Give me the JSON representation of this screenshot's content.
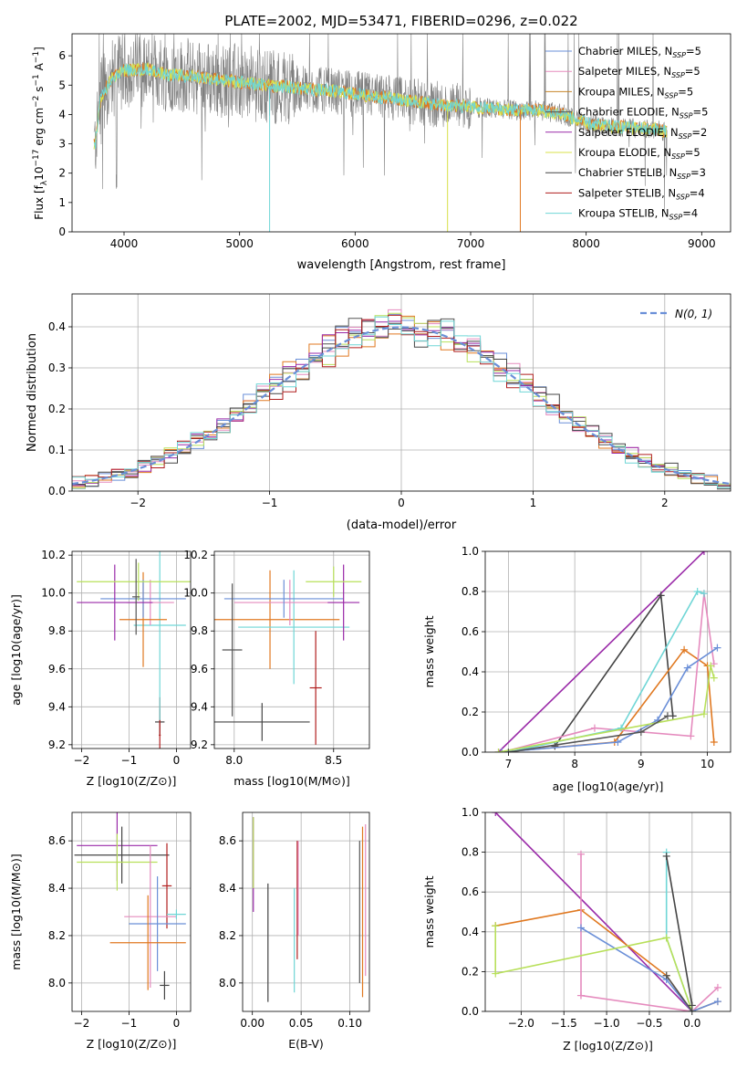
{
  "title": "PLATE=2002, MJD=53471, FIBERID=0296, z=0.022",
  "colors": {
    "Chabrier MILES": "#6a8fd8",
    "Salpeter MILES": "#e58bbe",
    "Kroupa MILES": "#c8862a",
    "Chabrier ELODIE": "#555555",
    "Salpeter ELODIE": "#9a2aa8",
    "Kroupa ELODIE": "#d8e04a",
    "Chabrier STELIB": "#444444",
    "Salpeter STELIB": "#b01e1e",
    "Kroupa STELIB": "#6fd6d6",
    "orange": "#e07820",
    "lime": "#b8e05a",
    "gray": "#808080",
    "normal": "#6a8fd8"
  },
  "legend": [
    {
      "label": "Chabrier MILES, N",
      "sub": "SSP",
      "suffix": "=5",
      "color": "#6a8fd8"
    },
    {
      "label": "Salpeter MILES, N",
      "sub": "SSP",
      "suffix": "=5",
      "color": "#e58bbe"
    },
    {
      "label": "Kroupa MILES, N",
      "sub": "SSP",
      "suffix": "=5",
      "color": "#c8862a"
    },
    {
      "label": "Chabrier ELODIE, N",
      "sub": "SSP",
      "suffix": "=5",
      "color": "#555555"
    },
    {
      "label": "Salpeter ELODIE, N",
      "sub": "SSP",
      "suffix": "=2",
      "color": "#9a2aa8"
    },
    {
      "label": "Kroupa ELODIE, N",
      "sub": "SSP",
      "suffix": "=5",
      "color": "#d8e04a"
    },
    {
      "label": "Chabrier STELIB, N",
      "sub": "SSP",
      "suffix": "=3",
      "color": "#444444"
    },
    {
      "label": "Salpeter STELIB, N",
      "sub": "SSP",
      "suffix": "=4",
      "color": "#b01e1e"
    },
    {
      "label": "Kroupa STELIB, N",
      "sub": "SSP",
      "suffix": "=4",
      "color": "#6fd6d6"
    }
  ],
  "chart_data": [
    {
      "id": "spectrum",
      "type": "line",
      "xlabel": "wavelength [Angstrom, rest frame]",
      "ylabel_parts": [
        "Flux [f",
        "λ",
        "10",
        "−17",
        " erg cm",
        "−2",
        " s",
        "−1",
        " A",
        "−1",
        "]"
      ],
      "xlim": [
        3550,
        9250
      ],
      "ylim": [
        0,
        6.75
      ],
      "xticks": [
        4000,
        5000,
        6000,
        7000,
        8000,
        9000
      ],
      "yticks": [
        0,
        1,
        2,
        3,
        4,
        5,
        6
      ],
      "continuum_x": [
        3750,
        3800,
        3900,
        4000,
        4200,
        4400,
        4600,
        4800,
        5000,
        5200,
        5400,
        5600,
        5800,
        6000,
        6200,
        6400,
        6600,
        6800,
        7000,
        7200,
        7400,
        7600,
        7800,
        8000,
        8200,
        8400,
        8600,
        8700
      ],
      "continuum_y": [
        3.0,
        4.6,
        5.3,
        5.5,
        5.55,
        5.35,
        5.3,
        5.2,
        5.1,
        5.0,
        4.95,
        4.85,
        4.8,
        4.7,
        4.6,
        4.5,
        4.4,
        4.3,
        4.25,
        4.2,
        4.15,
        4.15,
        4.0,
        3.7,
        3.6,
        3.55,
        3.5,
        3.4
      ]
    },
    {
      "id": "residuals",
      "type": "histogram",
      "xlabel": "(data-model)/error",
      "ylabel": "Normed distribution",
      "xlim": [
        -2.5,
        2.5
      ],
      "ylim": [
        0,
        0.48
      ],
      "xticks": [
        -2,
        -1,
        0,
        1,
        2
      ],
      "yticks": [
        0.0,
        0.1,
        0.2,
        0.3,
        0.4
      ],
      "legend": "N(0, 1)",
      "bin_width": 0.1,
      "bin_start": -2.5
    },
    {
      "id": "age-vs-Z",
      "type": "errorbar",
      "xlabel": "Z [log10(Z/Z⊙)]",
      "ylabel": "age [log10(age/yr)]",
      "xlim": [
        -2.2,
        0.3
      ],
      "ylim": [
        9.18,
        10.22
      ],
      "xticks": [
        -2,
        -1,
        0
      ],
      "yticks": [
        9.2,
        9.4,
        9.6,
        9.8,
        10.0,
        10.2
      ],
      "points": [
        {
          "x": -0.35,
          "y": 9.32,
          "xerr": 0.1,
          "yerr": 0.07,
          "color": "#444444"
        },
        {
          "x": -0.35,
          "y": 9.25,
          "xerr": 0.02,
          "yerr": 0.2,
          "color": "#b01e1e"
        },
        {
          "x": -0.35,
          "y": 9.83,
          "xerr": 0.55,
          "yerr": 0.5,
          "color": "#6fd6d6"
        },
        {
          "x": -0.55,
          "y": 9.95,
          "xerr": 0.5,
          "yerr": 0.12,
          "color": "#e58bbe"
        },
        {
          "x": -0.7,
          "y": 9.86,
          "xerr": 0.5,
          "yerr": 0.25,
          "color": "#e07820"
        },
        {
          "x": -0.7,
          "y": 9.97,
          "xerr": 0.9,
          "yerr": 0.1,
          "color": "#6a8fd8"
        },
        {
          "x": -1.3,
          "y": 9.95,
          "xerr": 0.8,
          "yerr": 0.2,
          "color": "#9a2aa8"
        },
        {
          "x": -0.8,
          "y": 10.06,
          "xerr": 1.3,
          "yerr": 0.1,
          "color": "#b8e05a"
        },
        {
          "x": -0.85,
          "y": 9.98,
          "xerr": 0.08,
          "yerr": 0.2,
          "color": "#555555"
        }
      ]
    },
    {
      "id": "age-vs-mass",
      "type": "errorbar",
      "xlabel": "mass [log10(M/M⊙)]",
      "ylabel": "",
      "xlim": [
        7.9,
        8.68
      ],
      "ylim": [
        9.18,
        10.22
      ],
      "xticks": [
        8.0,
        8.5
      ],
      "yticks": [
        9.2,
        9.4,
        9.6,
        9.8,
        10.0,
        10.2
      ],
      "points": [
        {
          "x": 8.14,
          "y": 9.32,
          "xerr": 0.24,
          "yerr": 0.1,
          "color": "#444444"
        },
        {
          "x": 8.41,
          "y": 9.5,
          "xerr": 0.03,
          "yerr": 0.3,
          "color": "#b01e1e"
        },
        {
          "x": 8.18,
          "y": 9.86,
          "xerr": 0.35,
          "yerr": 0.26,
          "color": "#e07820"
        },
        {
          "x": 8.3,
          "y": 9.82,
          "xerr": 0.28,
          "yerr": 0.3,
          "color": "#6fd6d6"
        },
        {
          "x": 8.28,
          "y": 9.95,
          "xerr": 0.28,
          "yerr": 0.12,
          "color": "#e58bbe"
        },
        {
          "x": 8.25,
          "y": 9.97,
          "xerr": 0.3,
          "yerr": 0.1,
          "color": "#6a8fd8"
        },
        {
          "x": 8.55,
          "y": 9.95,
          "xerr": 0.08,
          "yerr": 0.2,
          "color": "#9a2aa8"
        },
        {
          "x": 8.5,
          "y": 10.06,
          "xerr": 0.14,
          "yerr": 0.08,
          "color": "#b8e05a"
        },
        {
          "x": 7.99,
          "y": 9.7,
          "xerr": 0.05,
          "yerr": 0.35,
          "color": "#555555"
        }
      ]
    },
    {
      "id": "massweight-vs-age",
      "type": "line",
      "xlabel": "age [log10(age/yr)]",
      "ylabel": "mass weight",
      "xlim": [
        6.65,
        10.35
      ],
      "ylim": [
        0,
        1
      ],
      "xticks": [
        7,
        8,
        9,
        10
      ],
      "yticks": [
        0.0,
        0.2,
        0.4,
        0.6,
        0.8,
        1.0
      ],
      "series": [
        {
          "color": "#9a2aa8",
          "x": [
            6.85,
            9.95
          ],
          "y": [
            0.0,
            1.0
          ]
        },
        {
          "color": "#444444",
          "x": [
            7.7,
            9.3,
            9.48
          ],
          "y": [
            0.03,
            0.78,
            0.18
          ]
        },
        {
          "color": "#e07820",
          "x": [
            6.9,
            8.6,
            9.65,
            10.0,
            10.1
          ],
          "y": [
            0.0,
            0.05,
            0.51,
            0.43,
            0.05
          ]
        },
        {
          "color": "#e58bbe",
          "x": [
            6.9,
            8.3,
            9.75,
            9.95,
            10.1
          ],
          "y": [
            0.0,
            0.12,
            0.08,
            0.79,
            0.44
          ]
        },
        {
          "color": "#6a8fd8",
          "x": [
            6.9,
            8.65,
            9.25,
            9.7,
            10.15
          ],
          "y": [
            0.0,
            0.05,
            0.16,
            0.42,
            0.52
          ]
        },
        {
          "color": "#6fd6d6",
          "x": [
            7.0,
            8.7,
            9.85,
            9.95
          ],
          "y": [
            0.0,
            0.12,
            0.8,
            0.79
          ]
        },
        {
          "color": "#b8e05a",
          "x": [
            6.85,
            9.95,
            10.05,
            10.1
          ],
          "y": [
            0.0,
            0.19,
            0.43,
            0.37
          ]
        },
        {
          "color": "#555555",
          "x": [
            7.0,
            9.0,
            9.4
          ],
          "y": [
            0.0,
            0.1,
            0.18
          ]
        }
      ]
    },
    {
      "id": "mass-vs-Z",
      "type": "errorbar",
      "xlabel": "Z [log10(Z/Z⊙)]",
      "ylabel": "mass [log10(M/M⊙)]",
      "xlim": [
        -2.2,
        0.3
      ],
      "ylim": [
        7.88,
        8.72
      ],
      "xticks": [
        -2,
        -1,
        0
      ],
      "yticks": [
        8.0,
        8.2,
        8.4,
        8.6
      ],
      "points": [
        {
          "x": -1.25,
          "y": 8.58,
          "xerr": 0.85,
          "yerr": 0.15,
          "color": "#9a2aa8"
        },
        {
          "x": -1.15,
          "y": 8.54,
          "xerr": 1.0,
          "yerr": 0.12,
          "color": "#444444"
        },
        {
          "x": -1.25,
          "y": 8.51,
          "xerr": 0.85,
          "yerr": 0.12,
          "color": "#b8e05a"
        },
        {
          "x": -0.2,
          "y": 8.41,
          "xerr": 0.1,
          "yerr": 0.18,
          "color": "#b01e1e"
        },
        {
          "x": -0.55,
          "y": 8.28,
          "xerr": 0.55,
          "yerr": 0.3,
          "color": "#e58bbe"
        },
        {
          "x": -0.4,
          "y": 8.25,
          "xerr": 0.6,
          "yerr": 0.2,
          "color": "#6a8fd8"
        },
        {
          "x": -0.6,
          "y": 8.17,
          "xerr": 0.8,
          "yerr": 0.2,
          "color": "#e07820"
        },
        {
          "x": -0.25,
          "y": 7.99,
          "xerr": 0.1,
          "yerr": 0.06,
          "color": "#444444"
        },
        {
          "x": 0.0,
          "y": 8.29,
          "xerr": 0.2,
          "yerr": 0.02,
          "color": "#6fd6d6"
        }
      ]
    },
    {
      "id": "mass-vs-ebv",
      "type": "errorbar",
      "xlabel": "E(B-V)",
      "ylabel": "",
      "xlim": [
        -0.01,
        0.12
      ],
      "ylim": [
        7.88,
        8.72
      ],
      "xticks": [
        0.0,
        0.05,
        0.1
      ],
      "yticks": [
        8.0,
        8.2,
        8.4,
        8.6
      ],
      "points": [
        {
          "x": 0.001,
          "y": 8.5,
          "xerr": 0.0,
          "yerr": 0.2,
          "color": "#9a2aa8"
        },
        {
          "x": 0.001,
          "y": 8.55,
          "xerr": 0.0,
          "yerr": 0.15,
          "color": "#b8e05a"
        },
        {
          "x": 0.016,
          "y": 8.17,
          "xerr": 0.0,
          "yerr": 0.25,
          "color": "#444444"
        },
        {
          "x": 0.043,
          "y": 8.18,
          "xerr": 0.0,
          "yerr": 0.22,
          "color": "#6fd6d6"
        },
        {
          "x": 0.046,
          "y": 8.35,
          "xerr": 0.0,
          "yerr": 0.25,
          "color": "#b01e1e"
        },
        {
          "x": 0.047,
          "y": 8.4,
          "xerr": 0.0,
          "yerr": 0.2,
          "color": "#e58bbe"
        },
        {
          "x": 0.11,
          "y": 8.3,
          "xerr": 0.0,
          "yerr": 0.3,
          "color": "#555555"
        },
        {
          "x": 0.113,
          "y": 8.3,
          "xerr": 0.0,
          "yerr": 0.36,
          "color": "#e07820"
        },
        {
          "x": 0.116,
          "y": 8.35,
          "xerr": 0.0,
          "yerr": 0.32,
          "color": "#e58bbe"
        }
      ]
    },
    {
      "id": "massweight-vs-Z",
      "type": "line",
      "xlabel": "Z [log10(Z/Z⊙)]",
      "ylabel": "mass weight",
      "xlim": [
        -2.42,
        0.45
      ],
      "ylim": [
        0,
        1
      ],
      "xticks": [
        -2.0,
        -1.5,
        -1.0,
        -0.5,
        0.0
      ],
      "yticks": [
        0.0,
        0.2,
        0.4,
        0.6,
        0.8,
        1.0
      ],
      "series": [
        {
          "color": "#9a2aa8",
          "x": [
            -2.3,
            0.0
          ],
          "y": [
            1.0,
            0.0
          ]
        },
        {
          "color": "#e07820",
          "x": [
            -2.3,
            -1.3,
            -0.3,
            0.0,
            0.3
          ],
          "y": [
            0.43,
            0.51,
            0.18,
            0.0,
            0.05
          ]
        },
        {
          "color": "#e58bbe",
          "x": [
            -1.3,
            -1.3,
            -1.3,
            0.0,
            0.3
          ],
          "y": [
            0.79,
            0.08,
            0.08,
            0.0,
            0.12
          ]
        },
        {
          "color": "#6a8fd8",
          "x": [
            -1.3,
            -0.3,
            0.0,
            0.3
          ],
          "y": [
            0.42,
            0.16,
            0.0,
            0.05
          ]
        },
        {
          "color": "#6fd6d6",
          "x": [
            -0.3,
            -0.3,
            0.0
          ],
          "y": [
            0.8,
            0.37,
            0.0
          ]
        },
        {
          "color": "#b8e05a",
          "x": [
            -2.3,
            -2.3,
            -0.3,
            0.0
          ],
          "y": [
            0.43,
            0.19,
            0.37,
            0.0
          ]
        },
        {
          "color": "#444444",
          "x": [
            -0.3,
            0.0
          ],
          "y": [
            0.78,
            0.03
          ]
        },
        {
          "color": "#555555",
          "x": [
            -0.3,
            0.0
          ],
          "y": [
            0.18,
            0.0
          ]
        }
      ]
    }
  ]
}
